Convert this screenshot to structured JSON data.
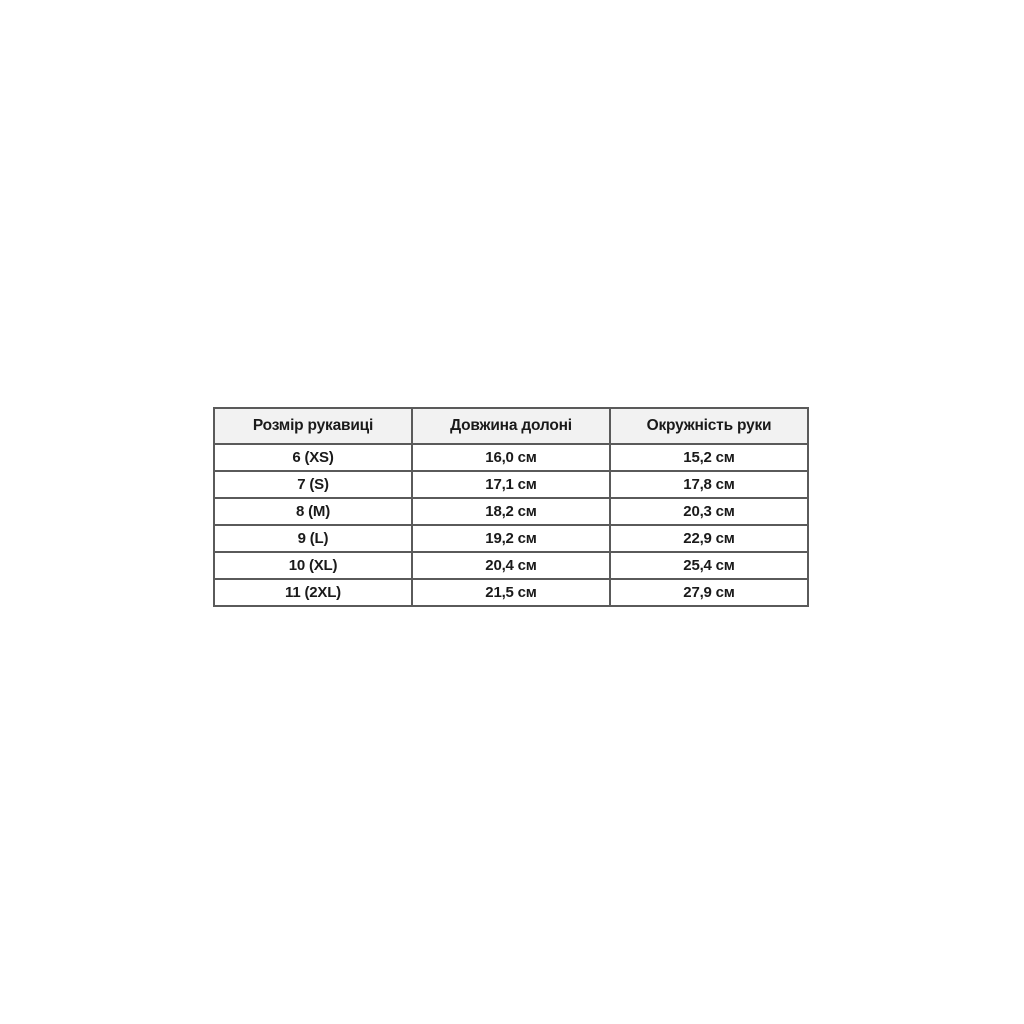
{
  "table": {
    "headers": [
      "Розмір рукавиці",
      "Довжина долоні",
      "Окружність руки"
    ],
    "rows": [
      [
        "6 (XS)",
        "16,0 см",
        "15,2 см"
      ],
      [
        "7 (S)",
        "17,1 см",
        "17,8 см"
      ],
      [
        "8 (M)",
        "18,2 см",
        "20,3 см"
      ],
      [
        "9 (L)",
        "19,2 см",
        "22,9 см"
      ],
      [
        "10 (XL)",
        "20,4 см",
        "25,4 см"
      ],
      [
        "11 (2XL)",
        "21,5 см",
        "27,9 см"
      ]
    ]
  },
  "chart_data": {
    "type": "table",
    "title": "",
    "columns": [
      "Розмір рукавиці",
      "Довжина долоні",
      "Окружність руки"
    ],
    "rows": [
      {
        "size": "6 (XS)",
        "palm_length_cm": 16.0,
        "hand_circumference_cm": 15.2
      },
      {
        "size": "7 (S)",
        "palm_length_cm": 17.1,
        "hand_circumference_cm": 17.8
      },
      {
        "size": "8 (M)",
        "palm_length_cm": 18.2,
        "hand_circumference_cm": 20.3
      },
      {
        "size": "9 (L)",
        "palm_length_cm": 19.2,
        "hand_circumference_cm": 22.9
      },
      {
        "size": "10 (XL)",
        "palm_length_cm": 20.4,
        "hand_circumference_cm": 25.4
      },
      {
        "size": "11 (2XL)",
        "palm_length_cm": 21.5,
        "hand_circumference_cm": 27.9
      }
    ],
    "unit": "см",
    "layout": "three equal columns, header row shaded"
  },
  "colors": {
    "page_bg": "#ffffff",
    "header_bg": "#f2f2f2",
    "border": "#4d4d4d",
    "text": "#1a1a1a"
  }
}
